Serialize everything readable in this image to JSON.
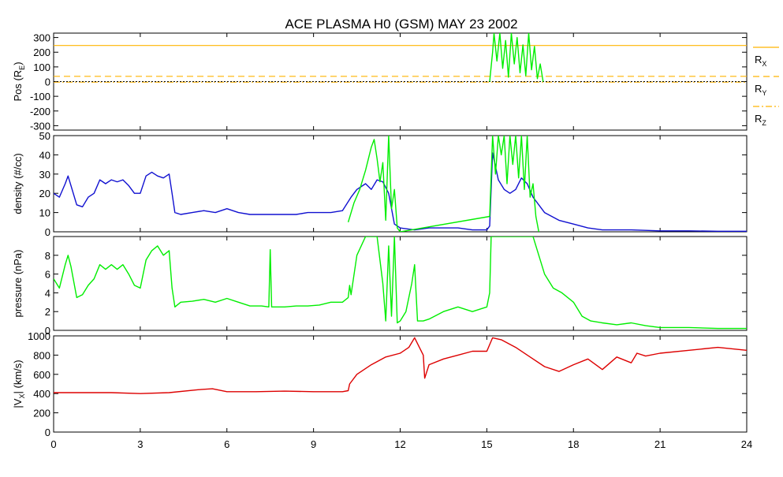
{
  "title": "ACE PLASMA H0 (GSM)   MAY 23 2002",
  "colors": {
    "position_x": "#ffb400",
    "position_y": "#ffb400",
    "position_z": "#ffb400",
    "zero_line": "#000000",
    "density": "#1010d0",
    "overlay_green": "#00ee00",
    "pressure": "#00ee00",
    "velocity": "#dd0000"
  },
  "x_axis": {
    "range": [
      0,
      24
    ],
    "tick_labels": [
      "0",
      "3",
      "6",
      "9",
      "12",
      "15",
      "18",
      "21",
      "24"
    ]
  },
  "legend": {
    "entries": [
      {
        "base": "R",
        "sub": "X",
        "style": "solid"
      },
      {
        "base": "R",
        "sub": "Y",
        "style": "dashed"
      },
      {
        "base": "R",
        "sub": "Z",
        "style": "dashdot"
      }
    ]
  },
  "chart_data": [
    {
      "type": "line",
      "panel": "position",
      "ylabel": {
        "base": "Pos (R",
        "sub": "E",
        "tail": ")"
      },
      "ylim": [
        -330,
        330
      ],
      "y_tick_labels": [
        "300",
        "200",
        "100",
        "0",
        "-100",
        "-200",
        "-300"
      ],
      "series": [
        {
          "key": "rx",
          "style": "solid",
          "x": [
            0,
            24
          ],
          "y": [
            246,
            246
          ]
        },
        {
          "key": "ry",
          "style": "dashed",
          "x": [
            0,
            24
          ],
          "y": [
            36,
            36
          ]
        },
        {
          "key": "rz",
          "style": "dashdot",
          "x": [
            0,
            24
          ],
          "y": [
            -4,
            -4
          ]
        }
      ],
      "overlay": {
        "x": [
          15.1,
          15.2,
          15.25,
          15.35,
          15.45,
          15.55,
          15.65,
          15.75,
          15.85,
          15.95,
          16.05,
          16.15,
          16.25,
          16.35,
          16.45,
          16.55,
          16.65,
          16.75,
          16.85,
          16.95
        ],
        "y": [
          0,
          200,
          330,
          140,
          330,
          90,
          280,
          30,
          330,
          120,
          300,
          60,
          250,
          40,
          330,
          80,
          240,
          20,
          120,
          0
        ]
      }
    },
    {
      "type": "line",
      "panel": "density",
      "ylabel": {
        "base": "density (#/cc)"
      },
      "ylim": [
        0,
        50
      ],
      "y_tick_labels": [
        "50",
        "40",
        "30",
        "20",
        "10",
        "0"
      ],
      "series": [
        {
          "key": "density",
          "x": [
            0,
            0.2,
            0.4,
            0.5,
            0.6,
            0.8,
            1.0,
            1.2,
            1.4,
            1.6,
            1.8,
            2.0,
            2.2,
            2.4,
            2.6,
            2.8,
            3.0,
            3.2,
            3.4,
            3.6,
            3.8,
            4.0,
            4.1,
            4.2,
            4.4,
            4.8,
            5.2,
            5.6,
            6.0,
            6.4,
            6.8,
            7.2,
            7.6,
            8.0,
            8.4,
            8.8,
            9.2,
            9.6,
            10.0,
            10.3,
            10.5,
            10.8,
            11.0,
            11.2,
            11.4,
            11.6,
            11.8,
            12.0,
            12.5,
            13.0,
            13.5,
            14.0,
            14.5,
            15.0,
            15.1,
            15.2,
            15.4,
            15.6,
            15.8,
            16.0,
            16.2,
            16.4,
            16.6,
            16.8,
            17.0,
            17.5,
            18.0,
            18.5,
            19.0,
            20.0,
            21.0,
            22.0,
            23.0,
            24.0
          ],
          "y": [
            20,
            18,
            25,
            29,
            24,
            14,
            13,
            18,
            20,
            27,
            25,
            27,
            26,
            27,
            24,
            20,
            20,
            29,
            31,
            29,
            28,
            30,
            20,
            10,
            9,
            10,
            11,
            10,
            12,
            10,
            9,
            9,
            9,
            9,
            9,
            10,
            10,
            10,
            11,
            18,
            22,
            25,
            22,
            27,
            26,
            20,
            4,
            2,
            1,
            2,
            2,
            2,
            1,
            1,
            3,
            41,
            27,
            22,
            20,
            22,
            28,
            25,
            18,
            14,
            10,
            6,
            4,
            2,
            1,
            1,
            0.5,
            0.5,
            0.3,
            0.3
          ]
        }
      ],
      "overlay": {
        "x": [
          10.2,
          10.4,
          10.6,
          10.8,
          11.0,
          11.1,
          11.2,
          11.3,
          11.4,
          11.5,
          11.6,
          11.7,
          11.8,
          11.9,
          12.0,
          15.1,
          15.2,
          15.3,
          15.4,
          15.5,
          15.6,
          15.7,
          15.8,
          15.9,
          16.0,
          16.1,
          16.2,
          16.3,
          16.4,
          16.5,
          16.6,
          16.7,
          16.8
        ],
        "y": [
          5,
          15,
          22,
          32,
          44,
          48,
          38,
          26,
          36,
          6,
          50,
          12,
          22,
          2,
          0,
          8,
          50,
          30,
          50,
          40,
          50,
          25,
          50,
          35,
          50,
          28,
          50,
          22,
          50,
          18,
          25,
          8,
          0
        ]
      }
    },
    {
      "type": "line",
      "panel": "pressure",
      "ylabel": {
        "base": "pressure (nPa)"
      },
      "ylim": [
        0,
        10
      ],
      "y_tick_labels": [
        "8",
        "6",
        "4",
        "2",
        "0"
      ],
      "series": [
        {
          "key": "pressure",
          "x": [
            0,
            0.2,
            0.4,
            0.5,
            0.6,
            0.8,
            1.0,
            1.2,
            1.4,
            1.6,
            1.8,
            2.0,
            2.2,
            2.4,
            2.6,
            2.8,
            3.0,
            3.2,
            3.4,
            3.6,
            3.8,
            4.0,
            4.1,
            4.2,
            4.4,
            4.8,
            5.2,
            5.6,
            6.0,
            6.4,
            6.8,
            7.2,
            7.45,
            7.5,
            7.55,
            8.0,
            8.4,
            8.8,
            9.2,
            9.6,
            10.0,
            10.2,
            10.25,
            10.3,
            10.5,
            10.8,
            11.0,
            11.2,
            11.4,
            11.5,
            11.6,
            11.7,
            11.8,
            11.9,
            12.0,
            12.2,
            12.4,
            12.5,
            12.6,
            12.8,
            13.0,
            13.5,
            14.0,
            14.5,
            15.0,
            15.1,
            15.15,
            15.25,
            15.4,
            15.6,
            15.8,
            16.0,
            16.2,
            16.4,
            16.6,
            16.8,
            17.0,
            17.3,
            17.6,
            18.0,
            18.3,
            18.6,
            19.0,
            19.5,
            20.0,
            20.5,
            21.0,
            22.0,
            23.0,
            24.0
          ],
          "y": [
            5.5,
            4.5,
            7.0,
            8.0,
            6.8,
            3.5,
            3.8,
            4.8,
            5.5,
            7.0,
            6.5,
            7.0,
            6.5,
            7.0,
            6.0,
            4.8,
            4.5,
            7.5,
            8.5,
            9.0,
            8.0,
            8.5,
            4.5,
            2.5,
            3.0,
            3.1,
            3.3,
            3.0,
            3.4,
            3.0,
            2.6,
            2.6,
            2.5,
            8.6,
            2.5,
            2.5,
            2.6,
            2.6,
            2.7,
            3.0,
            3.0,
            3.5,
            4.8,
            3.8,
            8.0,
            10.0,
            10.0,
            10.0,
            5.0,
            1.0,
            9.0,
            1.5,
            10.0,
            0.8,
            1.0,
            2.0,
            5.0,
            7.0,
            1.0,
            1.0,
            1.2,
            2.0,
            2.5,
            2.0,
            2.5,
            4.0,
            10.0,
            10.0,
            10.0,
            10.0,
            10.0,
            10.0,
            10.0,
            10.0,
            10.0,
            8.0,
            6.0,
            4.5,
            4.0,
            3.0,
            1.5,
            1.0,
            0.8,
            0.6,
            0.8,
            0.5,
            0.3,
            0.3,
            0.2,
            0.2
          ]
        }
      ]
    },
    {
      "type": "line",
      "panel": "velocity",
      "ylabel": {
        "base": "|V",
        "sub": "X",
        "tail": "| (km/s)"
      },
      "ylim": [
        0,
        1000
      ],
      "y_tick_labels": [
        "1000",
        "800",
        "600",
        "400",
        "200",
        "0"
      ],
      "series": [
        {
          "key": "vx",
          "x": [
            0,
            1,
            2,
            3,
            4,
            5,
            5.5,
            6,
            7,
            8,
            9,
            10,
            10.2,
            10.25,
            10.5,
            11.0,
            11.5,
            12.0,
            12.3,
            12.5,
            12.8,
            12.85,
            13.0,
            13.5,
            14.0,
            14.5,
            15.0,
            15.2,
            15.5,
            16.0,
            16.5,
            17.0,
            17.5,
            18.0,
            18.5,
            19.0,
            19.5,
            20.0,
            20.2,
            20.5,
            21.0,
            22.0,
            23.0,
            24.0
          ],
          "y": [
            410,
            410,
            410,
            400,
            410,
            440,
            450,
            420,
            420,
            425,
            420,
            420,
            430,
            500,
            600,
            700,
            780,
            820,
            880,
            980,
            800,
            560,
            700,
            760,
            800,
            840,
            840,
            980,
            960,
            880,
            780,
            680,
            630,
            700,
            760,
            650,
            780,
            720,
            820,
            790,
            820,
            850,
            880,
            850
          ]
        }
      ]
    }
  ]
}
